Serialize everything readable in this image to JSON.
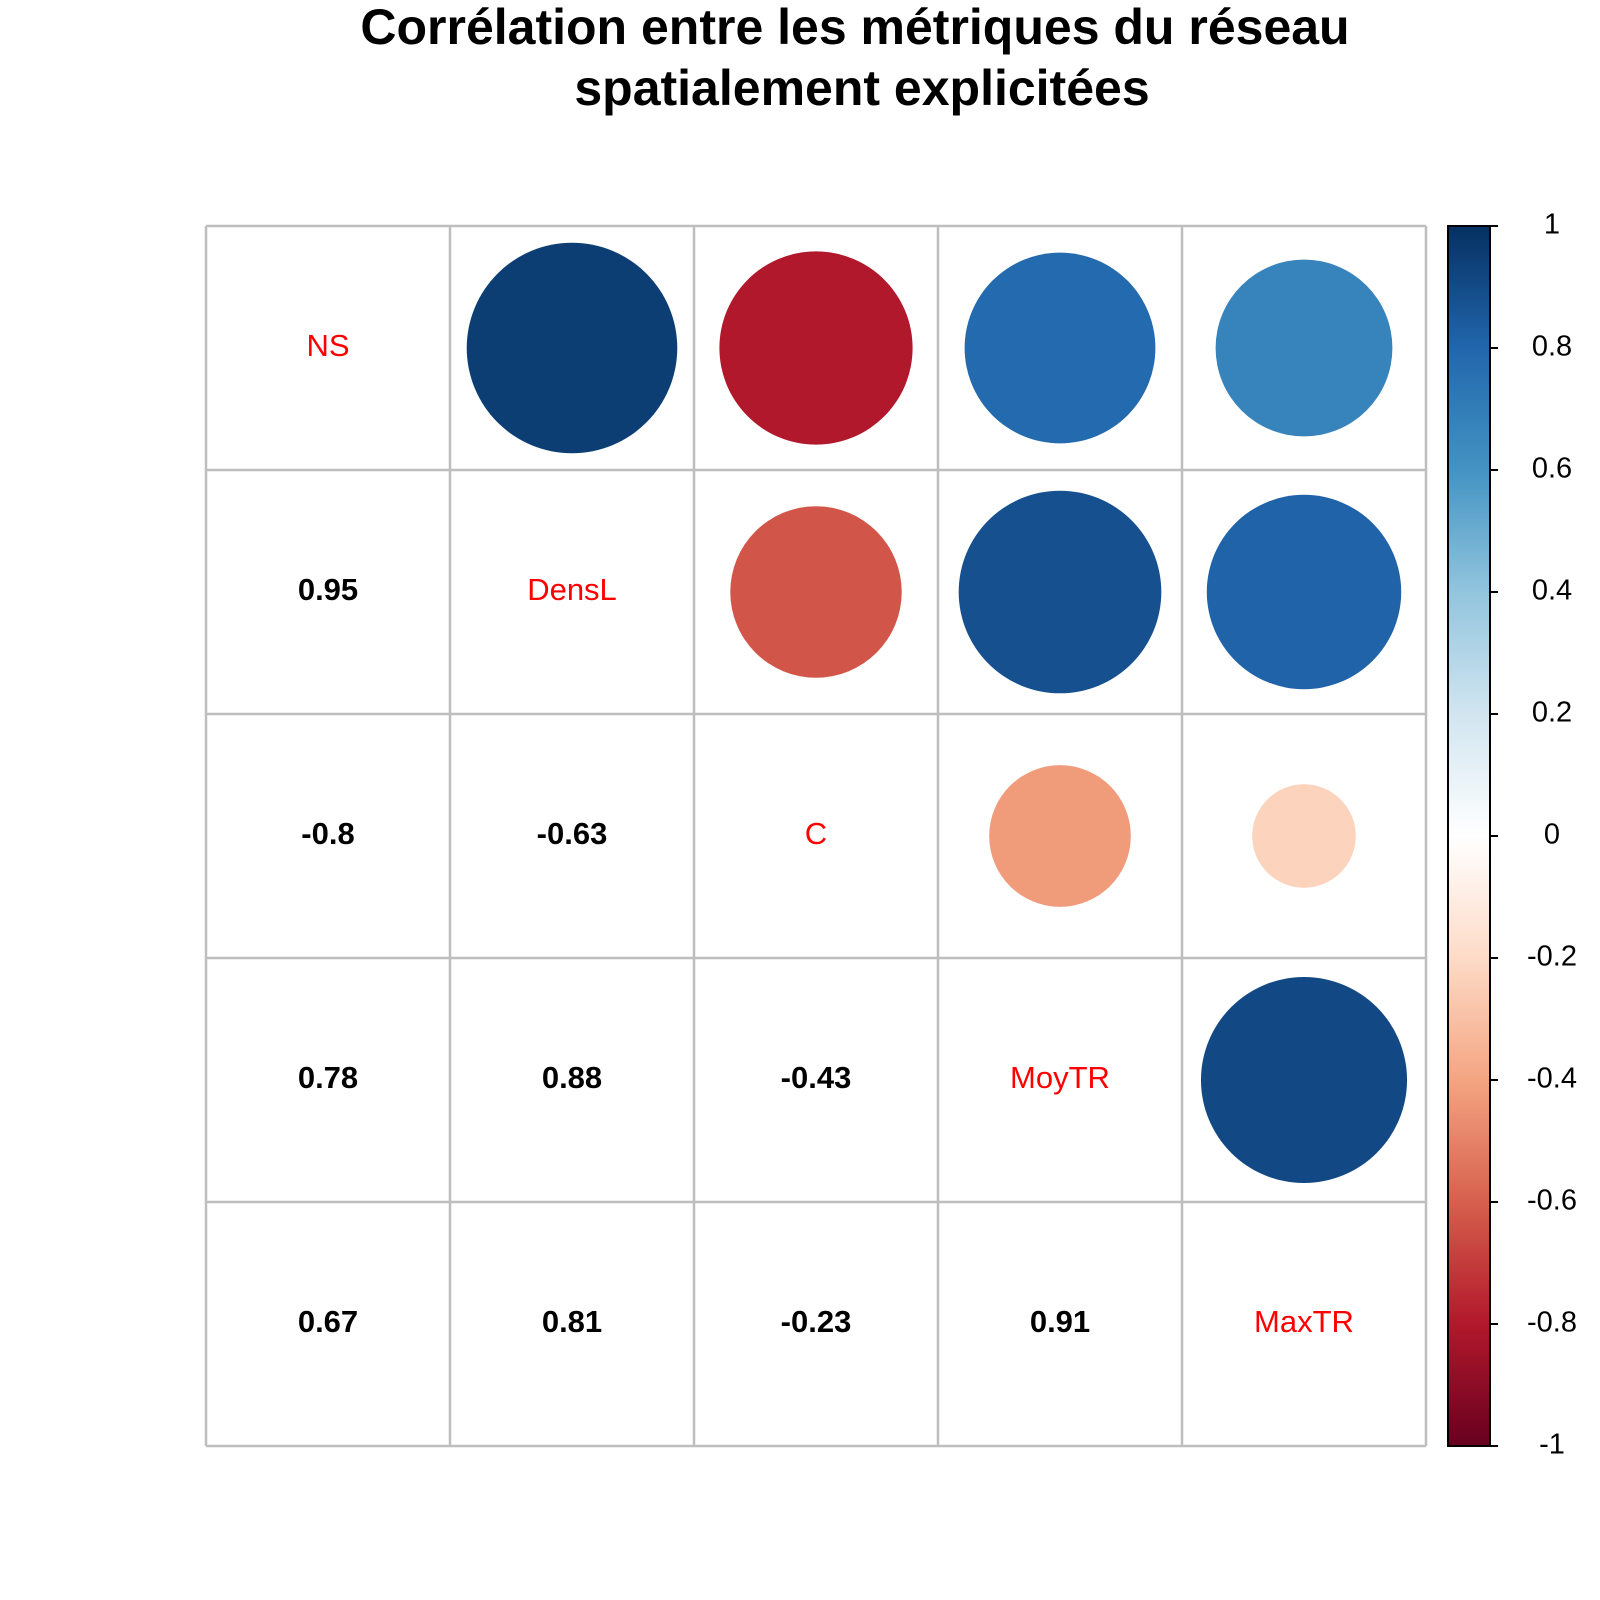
{
  "chart_data": {
    "type": "heatmap",
    "title_lines": [
      "Corrélation entre les métriques du réseau",
      "spatialement explicitées"
    ],
    "variables": [
      "NS",
      "DensL",
      "C",
      "MoyTR",
      "MaxTR"
    ],
    "matrix": [
      [
        1,
        0.95,
        -0.8,
        0.78,
        0.67
      ],
      [
        0.95,
        1,
        -0.63,
        0.88,
        0.81
      ],
      [
        -0.8,
        -0.63,
        1,
        -0.43,
        -0.23
      ],
      [
        0.78,
        0.88,
        -0.43,
        1,
        0.91
      ],
      [
        0.67,
        0.81,
        -0.23,
        0.91,
        1
      ]
    ],
    "lower_triangle": "numbers",
    "upper_triangle": "circles",
    "diagonal": "variable names",
    "value_labels": {
      "1_0": "0.95",
      "2_0": "-0.8",
      "2_1": "-0.63",
      "3_0": "0.78",
      "3_1": "0.88",
      "3_2": "-0.43",
      "4_0": "0.67",
      "4_1": "0.81",
      "4_2": "-0.23",
      "4_3": "0.91"
    },
    "color_scale": {
      "range": [
        -1,
        1
      ],
      "ticks": [
        "-1",
        "-0.8",
        "-0.6",
        "-0.4",
        "-0.2",
        "0",
        "0.2",
        "0.4",
        "0.6",
        "0.8",
        "1"
      ],
      "colors": [
        "#67001f",
        "#b2182b",
        "#d6604d",
        "#f4a582",
        "#fddbc7",
        "#ffffff",
        "#d1e5f0",
        "#92c5de",
        "#4393c3",
        "#2166ac",
        "#053061"
      ],
      "placement": "right"
    },
    "label_color": "#ff0000",
    "value_color": "#000000",
    "grid_color": "#bebebe"
  }
}
